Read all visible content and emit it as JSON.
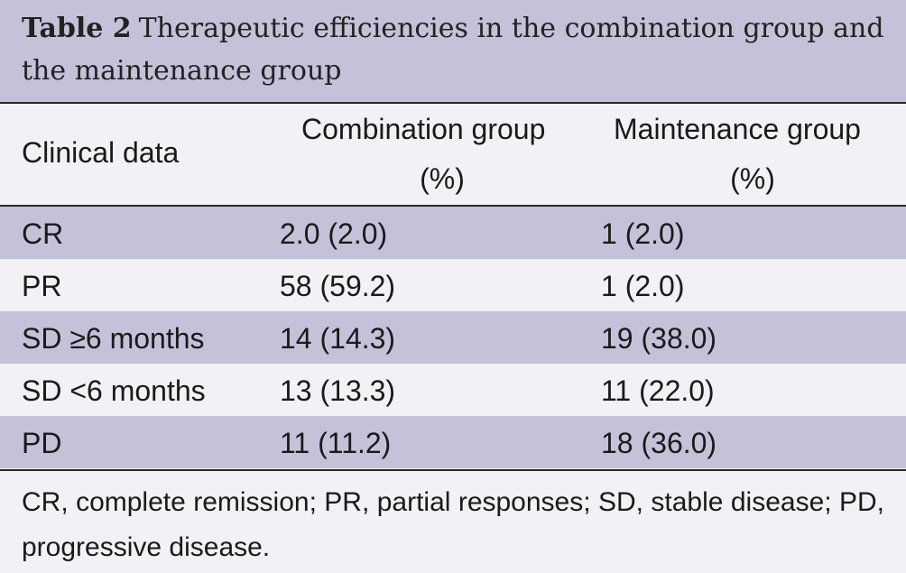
{
  "caption": {
    "label": "Table 2",
    "text": "Therapeutic efficiencies in the combination group and the maintenance group"
  },
  "table": {
    "headers": {
      "col1": "Clinical data",
      "col2_line1": "Combination group",
      "col2_line2": "(%)",
      "col3_line1": "Maintenance group",
      "col3_line2": "(%)"
    },
    "rows": [
      {
        "clinical": "CR",
        "combination": "2.0 (2.0)",
        "maintenance": "1 (2.0)"
      },
      {
        "clinical": "PR",
        "combination": "58 (59.2)",
        "maintenance": "1 (2.0)"
      },
      {
        "clinical": "SD ≥6 months",
        "combination": "14 (14.3)",
        "maintenance": "19 (38.0)"
      },
      {
        "clinical": "SD <6 months",
        "combination": "13 (13.3)",
        "maintenance": "11 (22.0)"
      },
      {
        "clinical": "PD",
        "combination": "11 (11.2)",
        "maintenance": "18 (36.0)"
      }
    ]
  },
  "footnote": "CR, complete remission; PR, partial responses; SD, stable disease; PD, progressive disease.",
  "colors": {
    "band": "#c3c2d8",
    "background": "#f1f1f6"
  }
}
